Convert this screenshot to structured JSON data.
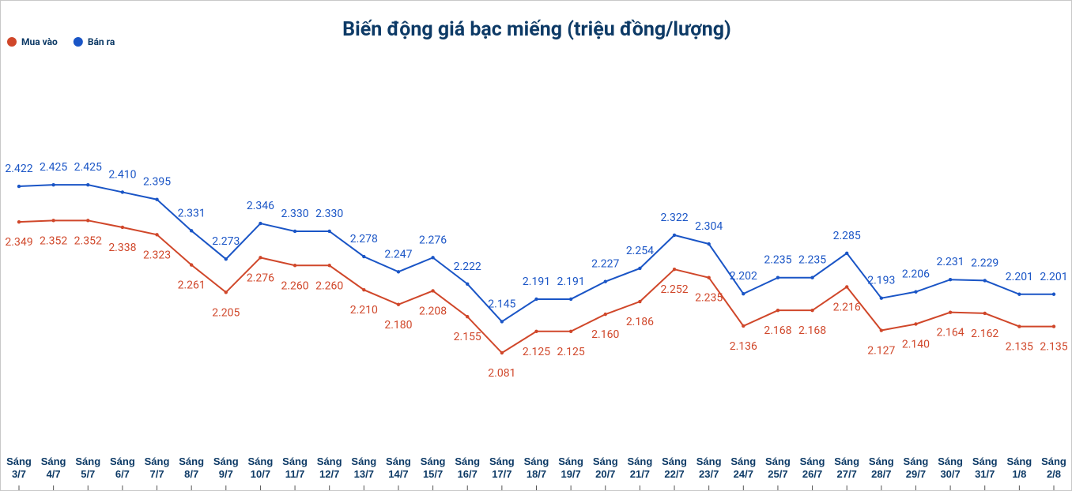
{
  "chart_data": {
    "type": "line",
    "title": "Biến động giá bạc miếng (triệu đồng/lượng)",
    "categories": [
      "Sáng 3/7",
      "Sáng 4/7",
      "Sáng 5/7",
      "Sáng 6/7",
      "Sáng 7/7",
      "Sáng 8/7",
      "Sáng 9/7",
      "Sáng 10/7",
      "Sáng 11/7",
      "Sáng 12/7",
      "Sáng 13/7",
      "Sáng 14/7",
      "Sáng 15/7",
      "Sáng 16/7",
      "Sáng 17/7",
      "Sáng 18/7",
      "Sáng 19/7",
      "Sáng 20/7",
      "Sáng 21/7",
      "Sáng 22/7",
      "Sáng 23/7",
      "Sáng 24/7",
      "Sáng 25/7",
      "Sáng 26/7",
      "Sáng 27/7",
      "Sáng 28/7",
      "Sáng 29/7",
      "Sáng 30/7",
      "Sáng 31/7",
      "Sáng 1/8",
      "Sáng 2/8"
    ],
    "series": [
      {
        "name": "Mua vào",
        "color": "#d0472a",
        "values": [
          2.349,
          2.352,
          2.352,
          2.338,
          2.323,
          2.261,
          2.205,
          2.276,
          2.26,
          2.26,
          2.21,
          2.18,
          2.208,
          2.155,
          2.081,
          2.125,
          2.125,
          2.16,
          2.186,
          2.252,
          2.235,
          2.136,
          2.168,
          2.168,
          2.216,
          2.127,
          2.14,
          2.164,
          2.162,
          2.135,
          2.135
        ],
        "value_labels": [
          "2.349",
          "2.352",
          "2.352",
          "2.338",
          "2.323",
          "2.261",
          "2.205",
          "2.276",
          "2.260",
          "2.260",
          "2.210",
          "2.180",
          "2.208",
          "2.155",
          "2.081",
          "2.125",
          "2.125",
          "2.160",
          "2.186",
          "2.252",
          "2.235",
          "2.136",
          "2.168",
          "2.168",
          "2.216",
          "2.127",
          "2.140",
          "2.164",
          "2.162",
          "2.135",
          "2.135"
        ]
      },
      {
        "name": "Bán ra",
        "color": "#1a55c6",
        "values": [
          2.422,
          2.425,
          2.425,
          2.41,
          2.395,
          2.331,
          2.273,
          2.346,
          2.33,
          2.33,
          2.278,
          2.247,
          2.276,
          2.222,
          2.145,
          2.191,
          2.191,
          2.227,
          2.254,
          2.322,
          2.304,
          2.202,
          2.235,
          2.235,
          2.285,
          2.193,
          2.206,
          2.231,
          2.229,
          2.201,
          2.201
        ],
        "value_labels": [
          "2.422",
          "2.425",
          "2.425",
          "2.410",
          "2.395",
          "2.331",
          "2.273",
          "2.346",
          "2.330",
          "2.330",
          "2.278",
          "2.247",
          "2.276",
          "2.222",
          "2.145",
          "2.191",
          "2.191",
          "2.227",
          "2.254",
          "2.322",
          "2.304",
          "2.202",
          "2.235",
          "2.235",
          "2.285",
          "2.193",
          "2.206",
          "2.231",
          "2.229",
          "2.201",
          "2.201"
        ]
      }
    ],
    "ylim": [
      1.9,
      2.7
    ],
    "legend": "top-left"
  }
}
